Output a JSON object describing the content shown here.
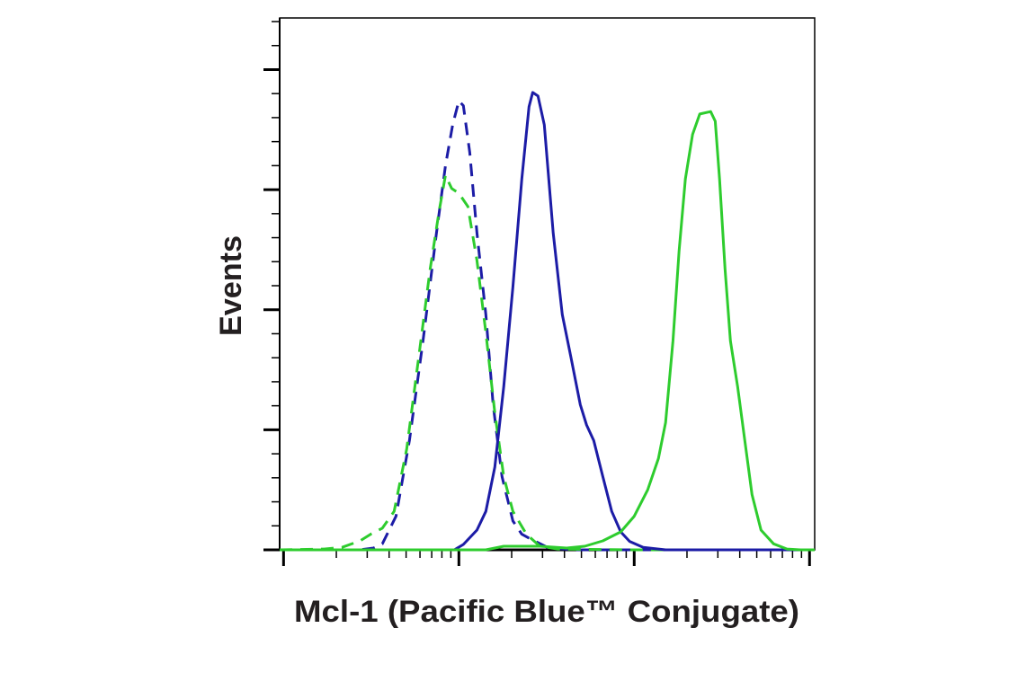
{
  "chart_data": {
    "type": "line",
    "x_label": "Mcl-1 (Pacific Blue™ Conjugate)",
    "y_label": "Events",
    "x_scale": "log",
    "xlim": [
      95,
      107000
    ],
    "xticks": [
      100,
      1000,
      10000,
      100000
    ],
    "xminorticks": [
      200,
      300,
      400,
      500,
      600,
      700,
      800,
      900,
      2000,
      3000,
      4000,
      5000,
      6000,
      7000,
      8000,
      9000,
      20000,
      30000,
      40000,
      50000,
      60000,
      70000,
      80000,
      90000
    ],
    "ylim": [
      0,
      443
    ],
    "yticks": [
      0,
      100,
      200,
      300,
      400
    ],
    "yminorticks": [
      20,
      40,
      60,
      80,
      120,
      140,
      160,
      180,
      220,
      240,
      260,
      280,
      320,
      340,
      360,
      380,
      420,
      440
    ],
    "series": [
      {
        "color": "#1c1ca6",
        "dashed": true,
        "x": [
          95,
          273,
          326,
          366,
          438,
          522,
          624,
          745,
          838,
          921,
          1000,
          1061,
          1153,
          1268,
          1425,
          1567,
          1762,
          2032,
          2286,
          2570,
          3258,
          4642,
          107000
        ],
        "values": [
          0,
          0,
          1.5,
          5,
          28,
          91,
          174,
          264,
          320,
          354,
          374,
          370,
          331,
          264,
          196,
          121,
          61,
          24,
          13,
          9,
          1.5,
          0,
          0
        ]
      },
      {
        "color": "#2ecc2e",
        "dashed": true,
        "x": [
          95,
          170,
          215,
          273,
          314,
          366,
          427,
          504,
          588,
          686,
          771,
          838,
          910,
          1000,
          1125,
          1268,
          1425,
          1603,
          1803,
          2032,
          2426,
          2897,
          3664,
          9420,
          107000
        ],
        "values": [
          0,
          0.7,
          2,
          7.5,
          13,
          18,
          32,
          84,
          159,
          234,
          282,
          312,
          301,
          297,
          286,
          241,
          181,
          114,
          61,
          32,
          13,
          3,
          0.7,
          0,
          0
        ]
      },
      {
        "color": "#1c1ca6",
        "dashed": false,
        "x": [
          95,
          942,
          1061,
          1268,
          1425,
          1603,
          1803,
          2032,
          2286,
          2512,
          2636,
          2825,
          3069,
          3451,
          3890,
          4375,
          4921,
          5346,
          5878,
          6622,
          7447,
          8375,
          9420,
          11250,
          15100,
          107000
        ],
        "values": [
          0,
          0,
          4.5,
          16.5,
          32,
          69,
          136,
          219,
          309,
          369,
          381,
          378,
          354,
          264,
          196,
          159,
          121,
          104,
          91,
          61,
          32,
          15,
          7,
          2,
          0,
          0
        ]
      },
      {
        "color": "#2ecc2e",
        "dashed": false,
        "x": [
          95,
          1425,
          1803,
          2897,
          4121,
          5224,
          6622,
          8375,
          10000,
          11940,
          13740,
          15100,
          16630,
          18030,
          19590,
          21530,
          23660,
          27290,
          28970,
          30690,
          32960,
          35400,
          38900,
          42760,
          46990,
          52840,
          62370,
          74470,
          88920,
          107000
        ],
        "values": [
          0,
          0,
          3,
          3,
          1.5,
          3,
          7.5,
          15,
          28,
          50,
          76,
          106,
          174,
          249,
          309,
          346,
          363,
          365,
          357,
          309,
          234,
          174,
          136,
          91,
          46,
          16.5,
          5,
          0.7,
          0,
          0
        ]
      }
    ]
  }
}
